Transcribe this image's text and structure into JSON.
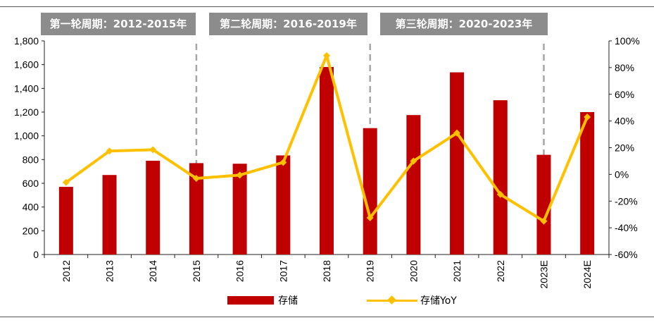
{
  "banners": [
    {
      "label": "第一轮周期：2012-2015年"
    },
    {
      "label": "第二轮周期：2016-2019年"
    },
    {
      "label": "第三轮周期：2020-2023年"
    }
  ],
  "legend": {
    "bar_label": "存储",
    "line_label": "存储YoY"
  },
  "chart_data": {
    "type": "bar",
    "categories": [
      "2012",
      "2013",
      "2014",
      "2015",
      "2016",
      "2017",
      "2018",
      "2019",
      "2020",
      "2021",
      "2022",
      "2023E",
      "2024E"
    ],
    "series": [
      {
        "name": "存储",
        "type": "bar",
        "axis": "left",
        "color": "#c00000",
        "values": [
          570,
          670,
          790,
          770,
          765,
          835,
          1580,
          1065,
          1175,
          1535,
          1300,
          840,
          1200
        ]
      },
      {
        "name": "存储YoY",
        "type": "line",
        "axis": "right",
        "color": "#ffc000",
        "values": [
          -6,
          17.5,
          18.5,
          -3,
          -0.5,
          9,
          89,
          -32.5,
          10,
          31,
          -15,
          -35,
          43
        ]
      }
    ],
    "left_axis": {
      "ylim": [
        0,
        1800
      ],
      "ticks": [
        "0",
        "200",
        "400",
        "600",
        "800",
        "1,000",
        "1,200",
        "1,400",
        "1,600",
        "1,800"
      ]
    },
    "right_axis": {
      "ylim": [
        -60,
        100
      ],
      "ticks": [
        "-60%",
        "-40%",
        "-20%",
        "0%",
        "20%",
        "40%",
        "60%",
        "80%",
        "100%"
      ]
    },
    "cycle_dividers_after": [
      "2015",
      "2019",
      "2023E"
    ],
    "grid": false,
    "legend_position": "bottom-center"
  }
}
